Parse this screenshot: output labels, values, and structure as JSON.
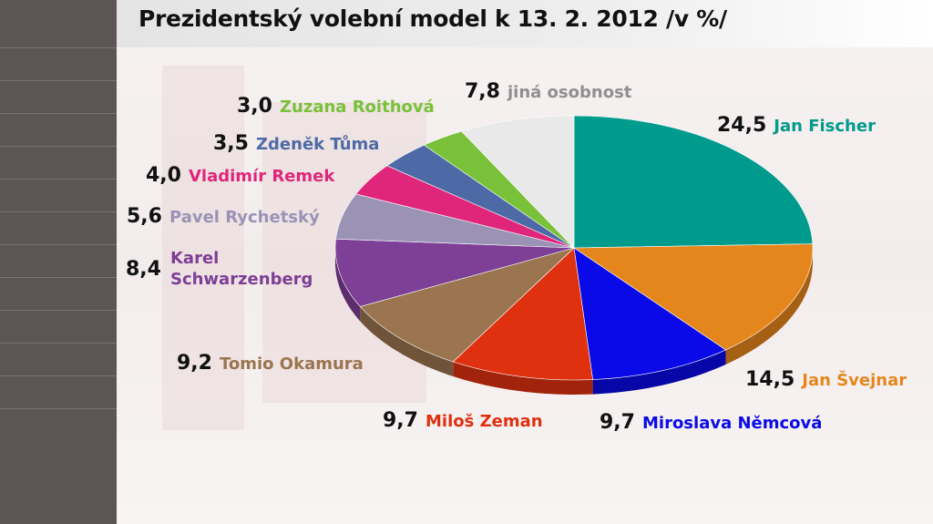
{
  "title": "Prezidentský volební model k 13. 2. 2012 /v %/",
  "chart_data": {
    "type": "pie",
    "title": "Prezidentský volební model k 13. 2. 2012 /v %/",
    "unit": "%",
    "slices": [
      {
        "label": "Jan Fischer",
        "value": 24.5,
        "value_text": "24,5",
        "color": "#009b8c"
      },
      {
        "label": "Jan Švejnar",
        "value": 14.5,
        "value_text": "14,5",
        "color": "#e5861c"
      },
      {
        "label": "Miroslava Němcová",
        "value": 9.7,
        "value_text": "9,7",
        "color": "#0a0ae8"
      },
      {
        "label": "Miloš Zeman",
        "value": 9.7,
        "value_text": "9,7",
        "color": "#df3010"
      },
      {
        "label": "Tomio Okamura",
        "value": 9.2,
        "value_text": "9,2",
        "color": "#9a7550"
      },
      {
        "label": "Karel Schwarzenberg",
        "label_lines": [
          "Karel",
          "Schwarzenberg"
        ],
        "value": 8.4,
        "value_text": "8,4",
        "color": "#7e3f96"
      },
      {
        "label": "Pavel Rychetský",
        "value": 5.6,
        "value_text": "5,6",
        "color": "#9a93b6"
      },
      {
        "label": "Vladimír Remek",
        "value": 4.0,
        "value_text": "4,0",
        "color": "#e0267a"
      },
      {
        "label": "Zdeněk Tůma",
        "value": 3.5,
        "value_text": "3,5",
        "color": "#4e6aa6"
      },
      {
        "label": "Zuzana Roithová",
        "value": 3.0,
        "value_text": "3,0",
        "color": "#7ac13a"
      },
      {
        "label": "jiná osobnost",
        "value": 7.8,
        "value_text": "7,8",
        "color": "#e9e9e9",
        "text_color": "#8f8f8f"
      }
    ]
  }
}
